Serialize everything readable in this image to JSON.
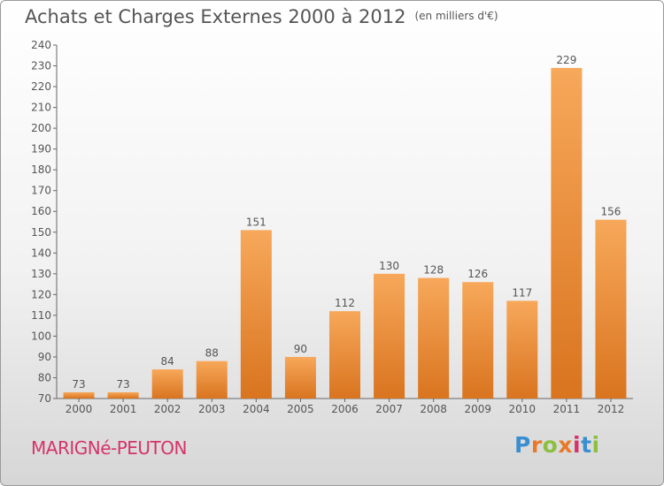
{
  "title": "Achats et Charges Externes 2000 à 2012",
  "subtitle": "(en milliers d'€)",
  "commune": "MARIGNé-PEUTON",
  "logo": {
    "text": "Proxiti",
    "colors": [
      "#3a8fd0",
      "#e8792a",
      "#8cbf3f",
      "#e8792a",
      "#d6336c",
      "#3a8fd0",
      "#8cbf3f"
    ]
  },
  "colors": {
    "bar_light": "#f7a85a",
    "bar_dark": "#d9741f",
    "text": "#555555",
    "commune": "#d6336c"
  },
  "chart_data": {
    "type": "bar",
    "categories": [
      "2000",
      "2001",
      "2002",
      "2003",
      "2004",
      "2005",
      "2006",
      "2007",
      "2008",
      "2009",
      "2010",
      "2011",
      "2012"
    ],
    "values": [
      73,
      73,
      84,
      88,
      151,
      90,
      112,
      130,
      128,
      126,
      117,
      229,
      156
    ],
    "ylim": [
      70,
      240
    ],
    "yticks": [
      70,
      80,
      90,
      100,
      110,
      120,
      130,
      140,
      150,
      160,
      170,
      180,
      190,
      200,
      210,
      220,
      230,
      240
    ],
    "grid": false
  }
}
